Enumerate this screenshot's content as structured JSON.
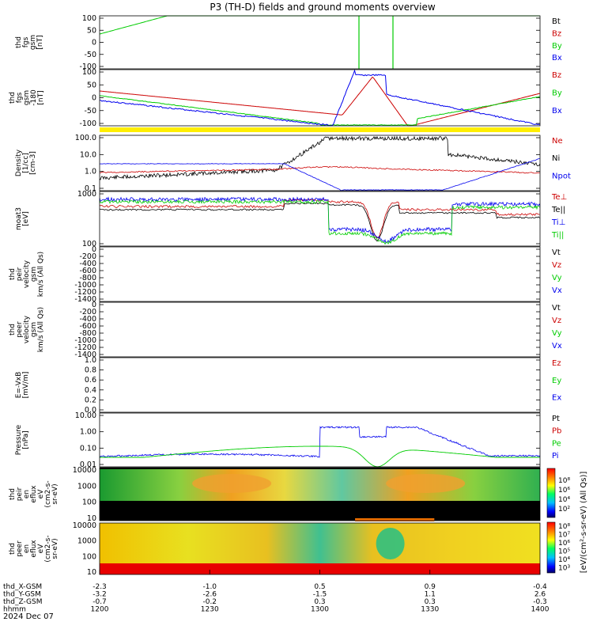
{
  "title": "P3 (TH-D) fields and ground moments overview",
  "colors": {
    "black": "#000000",
    "red": "#cc0000",
    "green": "#00cc00",
    "blue": "#0000ee",
    "yellow": "#ffee00"
  },
  "panels": [
    {
      "ylabel": [
        "thd",
        "fgs",
        "gsm",
        "[nT]"
      ],
      "legend": [
        "Bt",
        "Bz",
        "By",
        "Bx"
      ],
      "legend_colors": [
        "black",
        "red",
        "green",
        "blue"
      ],
      "ticks": [
        "100",
        "50",
        "0",
        "-50",
        "-100"
      ]
    },
    {
      "ylabel": [
        "thd",
        "fgs",
        "gsm",
        "-180",
        "[nT]"
      ],
      "legend": [
        "Bz",
        "By",
        "Bx"
      ],
      "legend_colors": [
        "red",
        "green",
        "blue"
      ],
      "ticks": [
        "100",
        "50",
        "0",
        "-50",
        "-100"
      ]
    },
    {
      "ylabel": [
        "Density",
        "[1/cc]",
        "[cm-3]"
      ],
      "legend": [
        "Ne",
        "Ni",
        "Npot"
      ],
      "legend_colors": [
        "red",
        "black",
        "blue"
      ],
      "ticks": [
        "100.0",
        "10.0",
        "1.0",
        "0.1"
      ]
    },
    {
      "ylabel": [
        "moat3",
        "[eV]"
      ],
      "legend": [
        "Te⊥",
        "Te||",
        "Ti⊥",
        "Ti||"
      ],
      "legend_colors": [
        "red",
        "black",
        "blue",
        "green"
      ],
      "ticks": [
        "1000",
        "100"
      ]
    },
    {
      "ylabel": [
        "thd",
        "peir",
        "velocity",
        "gsm",
        "km/s (All Qs)"
      ],
      "legend": [
        "Vt",
        "Vz",
        "Vy",
        "Vx"
      ],
      "legend_colors": [
        "black",
        "red",
        "green",
        "blue"
      ],
      "ticks": [
        "0",
        "-200",
        "-400",
        "-600",
        "-800",
        "-1000",
        "-1200",
        "-1400"
      ]
    },
    {
      "ylabel": [
        "thd",
        "peer",
        "velocity",
        "gsm",
        "km/s (All Qs)"
      ],
      "legend": [
        "Vt",
        "Vz",
        "Vy",
        "Vx"
      ],
      "legend_colors": [
        "black",
        "red",
        "green",
        "blue"
      ],
      "ticks": [
        "0",
        "-200",
        "-400",
        "-600",
        "-800",
        "-1000",
        "-1200",
        "-1400"
      ]
    },
    {
      "ylabel": [
        "E=-VxB",
        "[mV/m]"
      ],
      "legend": [
        "Ez",
        "Ey",
        "Ex"
      ],
      "legend_colors": [
        "red",
        "green",
        "blue"
      ],
      "ticks": [
        "1.0",
        "0.8",
        "0.6",
        "0.4",
        "0.2",
        "0.0"
      ]
    },
    {
      "ylabel": [
        "Pressure",
        "[nPa]"
      ],
      "legend": [
        "Pt",
        "Pb",
        "Pe",
        "Pi"
      ],
      "legend_colors": [
        "black",
        "red",
        "green",
        "blue"
      ],
      "ticks": [
        "10.00",
        "1.00",
        "0.10",
        "0.01"
      ]
    },
    {
      "ylabel": [
        "thd",
        "peir",
        "en",
        "eflux",
        "eV",
        "(cm2-s-",
        "sr-eV)"
      ],
      "legend": [],
      "legend_colors": [],
      "ticks": [
        "10000",
        "1000",
        "100",
        "10"
      ]
    },
    {
      "ylabel": [
        "thd",
        "peer",
        "en",
        "eflux",
        "eV",
        "(cm2-s-",
        "sr-eV)"
      ],
      "legend": [],
      "legend_colors": [],
      "ticks": [
        "10000",
        "1000",
        "100",
        "10"
      ]
    }
  ],
  "colorbar": {
    "label": "[eV/(cm²-s-sr-eV) (All Qs)]",
    "upper_ticks": [
      "10⁸",
      "10⁶",
      "10⁴",
      "10²"
    ],
    "lower_ticks": [
      "10⁸",
      "10⁷",
      "10⁶",
      "10⁵",
      "10⁴",
      "10³"
    ]
  },
  "xaxis": {
    "rows": [
      {
        "label": "thd_X-GSM",
        "values": [
          "-2.3",
          "-1.0",
          "0.5",
          "0.9",
          "-0.4"
        ]
      },
      {
        "label": "thd_Y-GSM",
        "values": [
          "-3.2",
          "-2.6",
          "-1.5",
          "1.1",
          "2.6"
        ]
      },
      {
        "label": "thd_Z-GSM",
        "values": [
          "-0.7",
          "-0.2",
          "0.3",
          "0.3",
          "-0.3"
        ]
      },
      {
        "label": "hhmm",
        "values": [
          "1200",
          "1230",
          "1300",
          "1330",
          "1400"
        ]
      }
    ],
    "date": "2024 Dec 07"
  },
  "chart_data": {
    "type": "line",
    "title": "P3 (TH-D) fields and ground moments overview",
    "x": [
      "1200",
      "1230",
      "1300",
      "1330",
      "1400"
    ],
    "series": [
      {
        "name": "By",
        "values": [
          30,
          60,
          100,
          0,
          100
        ]
      },
      {
        "name": "Bz",
        "values": [
          30,
          10,
          -100,
          40,
          30
        ]
      },
      {
        "name": "Bx",
        "values": [
          -10,
          -40,
          -100,
          100,
          -10
        ]
      },
      {
        "name": "Ni",
        "values": [
          0.2,
          0.3,
          100,
          100,
          0.5
        ]
      },
      {
        "name": "Ne",
        "values": [
          0.2,
          0.3,
          0.3,
          0.3,
          0.5
        ]
      },
      {
        "name": "Npot",
        "values": [
          1.0,
          1.0,
          0.1,
          0.1,
          0.2
        ]
      },
      {
        "name": "Pi",
        "values": [
          0.03,
          0.02,
          3.0,
          3.0,
          0.03
        ]
      },
      {
        "name": "Pe",
        "values": [
          0.03,
          0.02,
          0.1,
          0.1,
          0.03
        ]
      }
    ]
  }
}
